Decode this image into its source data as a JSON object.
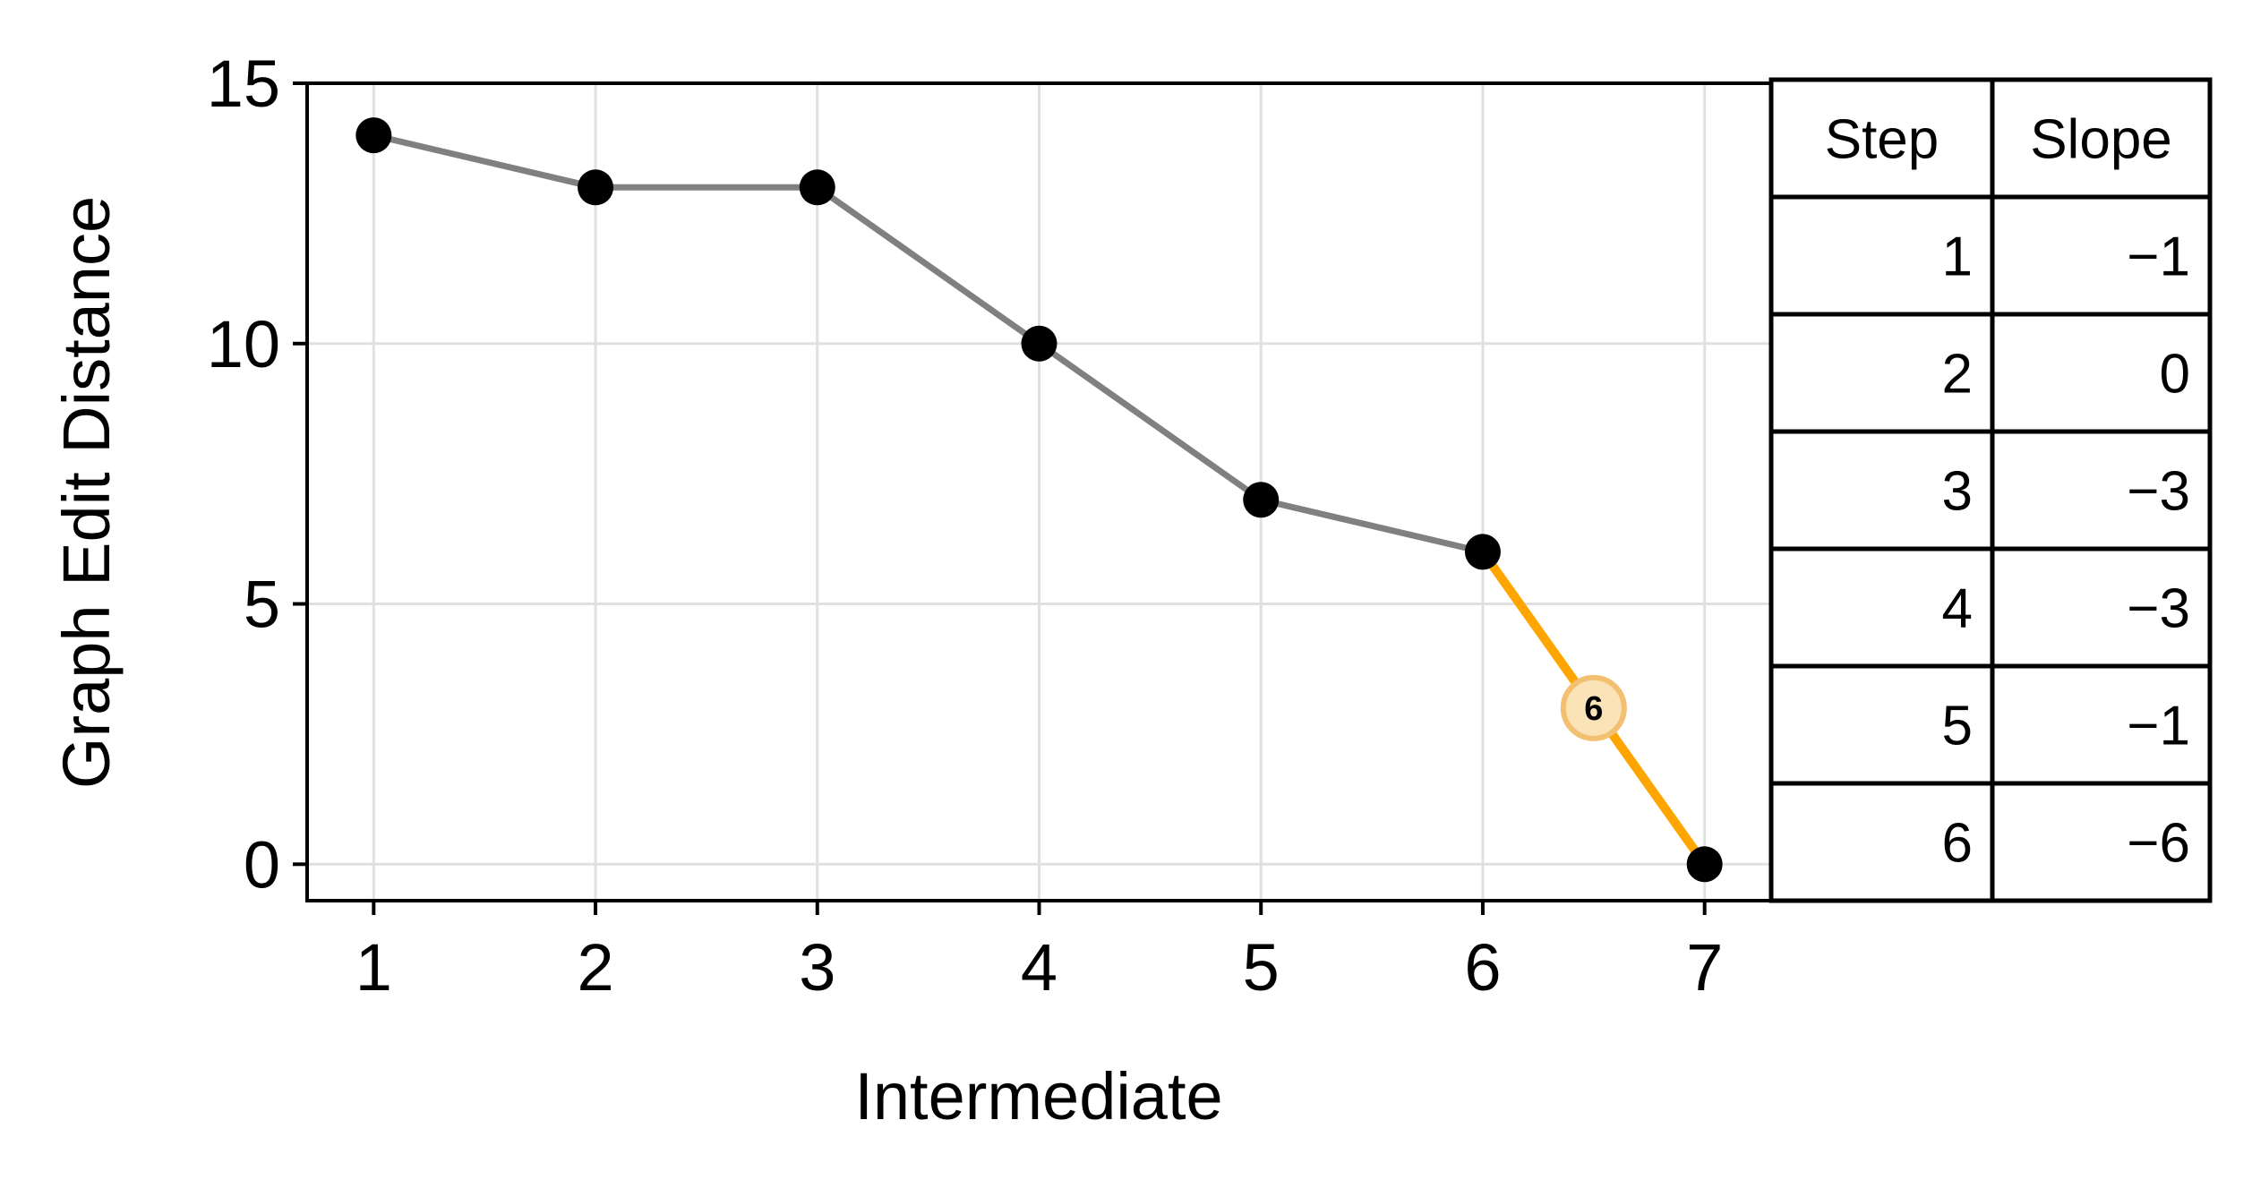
{
  "chart_data": {
    "type": "line",
    "xlabel": "Intermediate",
    "ylabel": "Graph Edit Distance",
    "x": [
      1,
      2,
      3,
      4,
      5,
      6,
      7
    ],
    "y": [
      14,
      13,
      13,
      10,
      7,
      6,
      0
    ],
    "xlim": [
      0.7,
      7.3
    ],
    "ylim": [
      -0.7,
      15
    ],
    "xticks": [
      1,
      2,
      3,
      4,
      5,
      6,
      7
    ],
    "yticks": [
      0,
      5,
      10,
      15
    ],
    "grid": true,
    "highlight": {
      "step": 6,
      "label": "6",
      "color": "#FFA500"
    },
    "colors": {
      "line": "#808080",
      "points": "#000000",
      "grid": "#e0e0e0",
      "badge_fill": "#fbe3b8",
      "badge_stroke": "#f2c070"
    },
    "table": {
      "headers": [
        "Step",
        "Slope"
      ],
      "rows": [
        [
          "1",
          "−1"
        ],
        [
          "2",
          "0"
        ],
        [
          "3",
          "−3"
        ],
        [
          "4",
          "−3"
        ],
        [
          "5",
          "−1"
        ],
        [
          "6",
          "−6"
        ]
      ]
    }
  }
}
